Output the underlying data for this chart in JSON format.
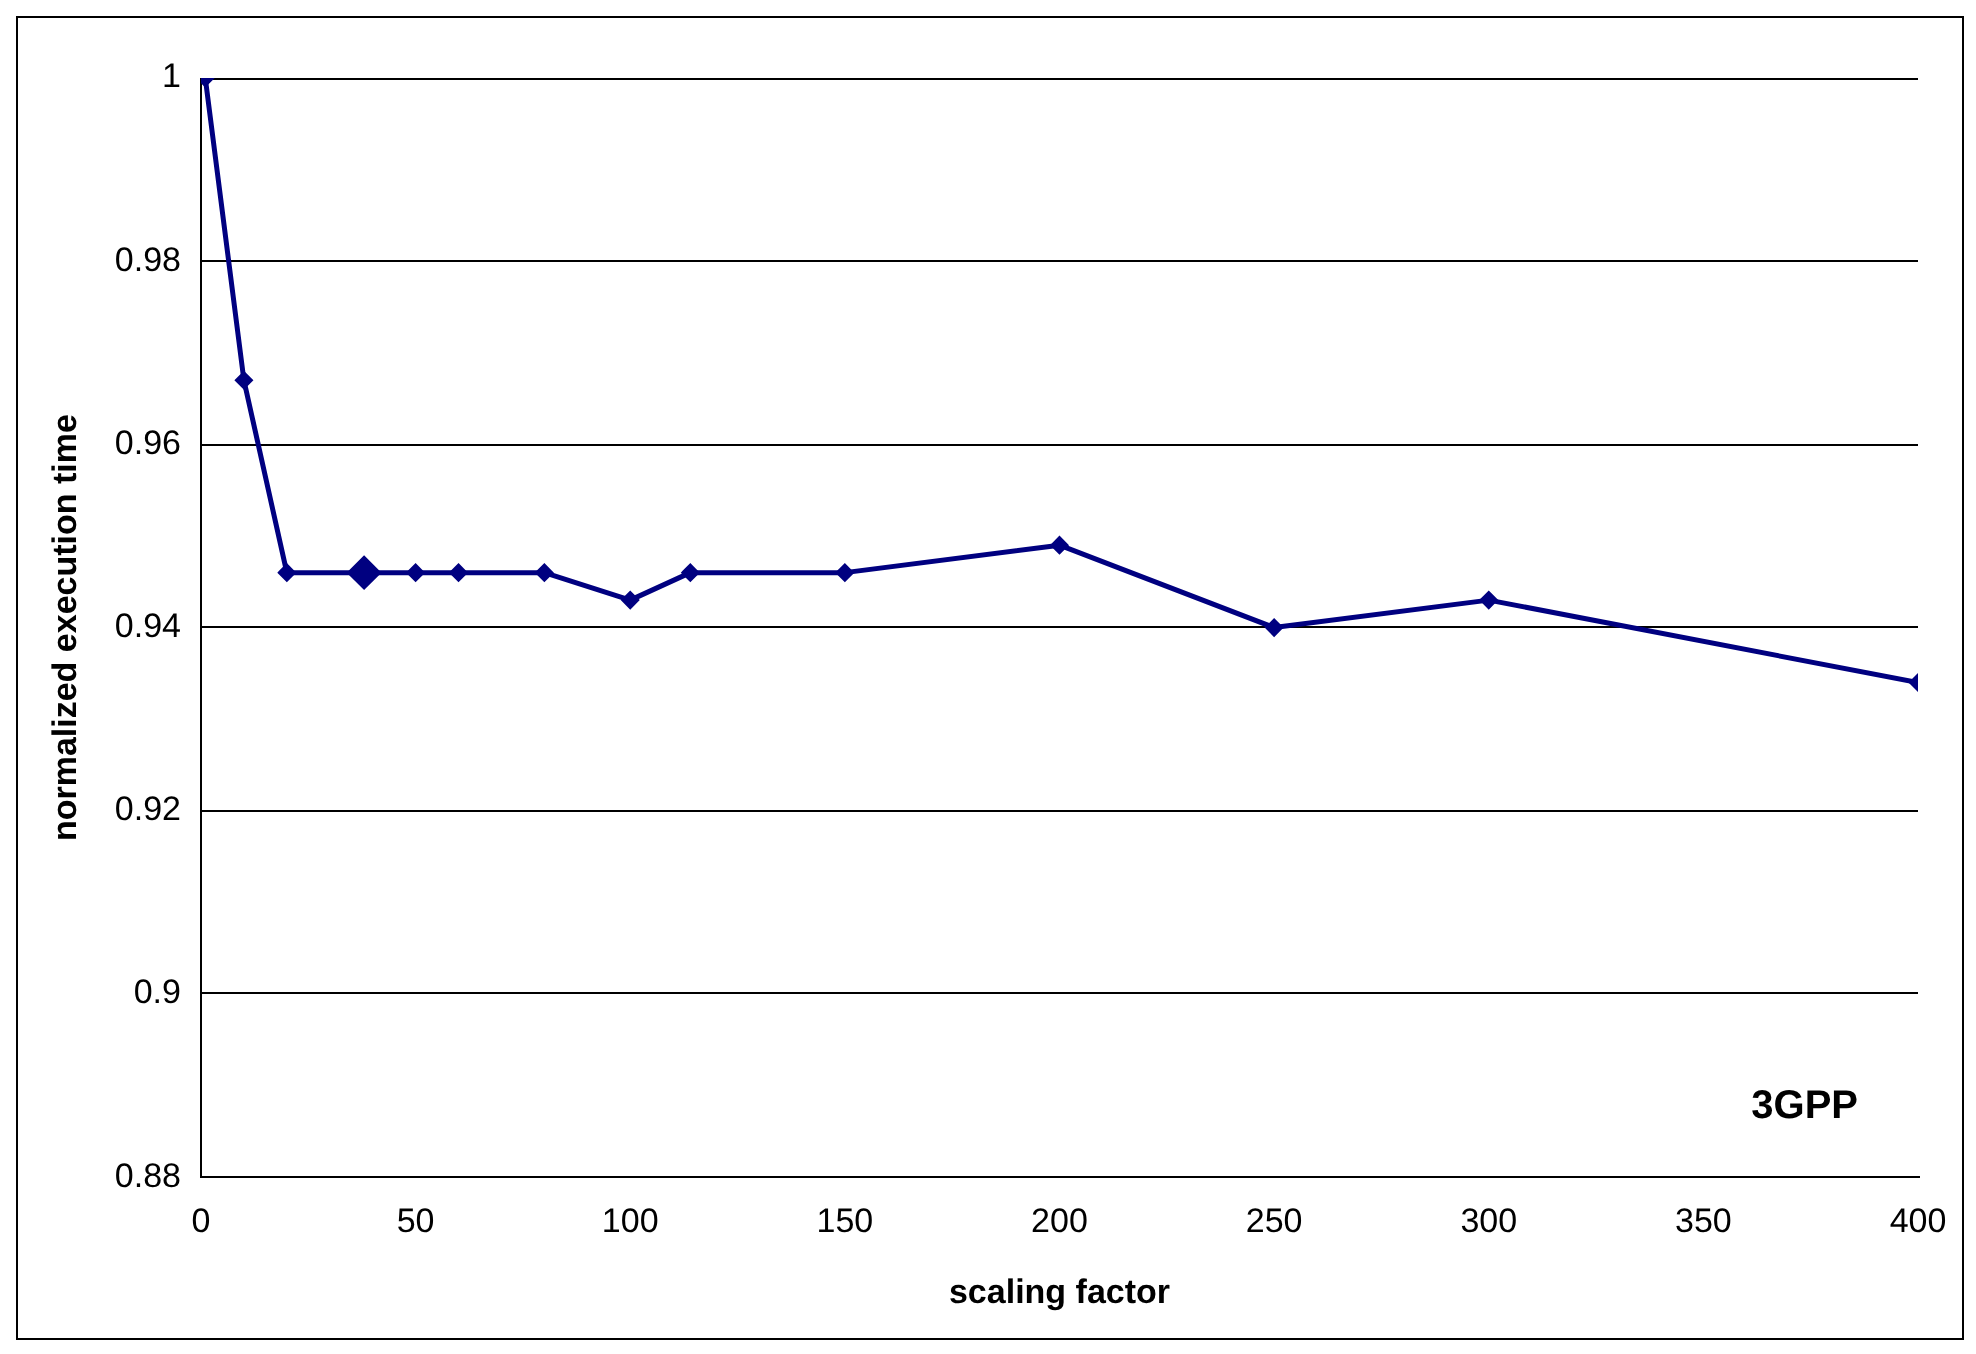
{
  "chart_data": {
    "type": "line",
    "xlabel": "scaling factor",
    "ylabel": "normalized execution time",
    "annotations": [
      "3GPP"
    ],
    "series": [
      {
        "type": "line",
        "color": "#000080",
        "marker": "diamond",
        "x": [
          1,
          10,
          20,
          50,
          60,
          80,
          100,
          114,
          150,
          200,
          250,
          300,
          400
        ],
        "values": [
          1,
          0.967,
          0.946,
          0.946,
          0.946,
          0.946,
          0.943,
          0.946,
          0.946,
          0.949,
          0.94,
          0.943,
          0.934
        ]
      },
      {
        "type": "scatter",
        "color": "#000080",
        "marker": "diamond",
        "x": [
          38
        ],
        "values": [
          0.946
        ]
      }
    ],
    "xlim": [
      0,
      400
    ],
    "xticks": [
      0,
      50,
      100,
      150,
      200,
      250,
      300,
      350,
      400
    ],
    "ylim": [
      0.88,
      1
    ],
    "yticks": [
      0.88,
      0.9,
      0.92,
      0.94,
      0.96,
      0.98,
      1
    ],
    "grid": "y",
    "legend": false
  }
}
